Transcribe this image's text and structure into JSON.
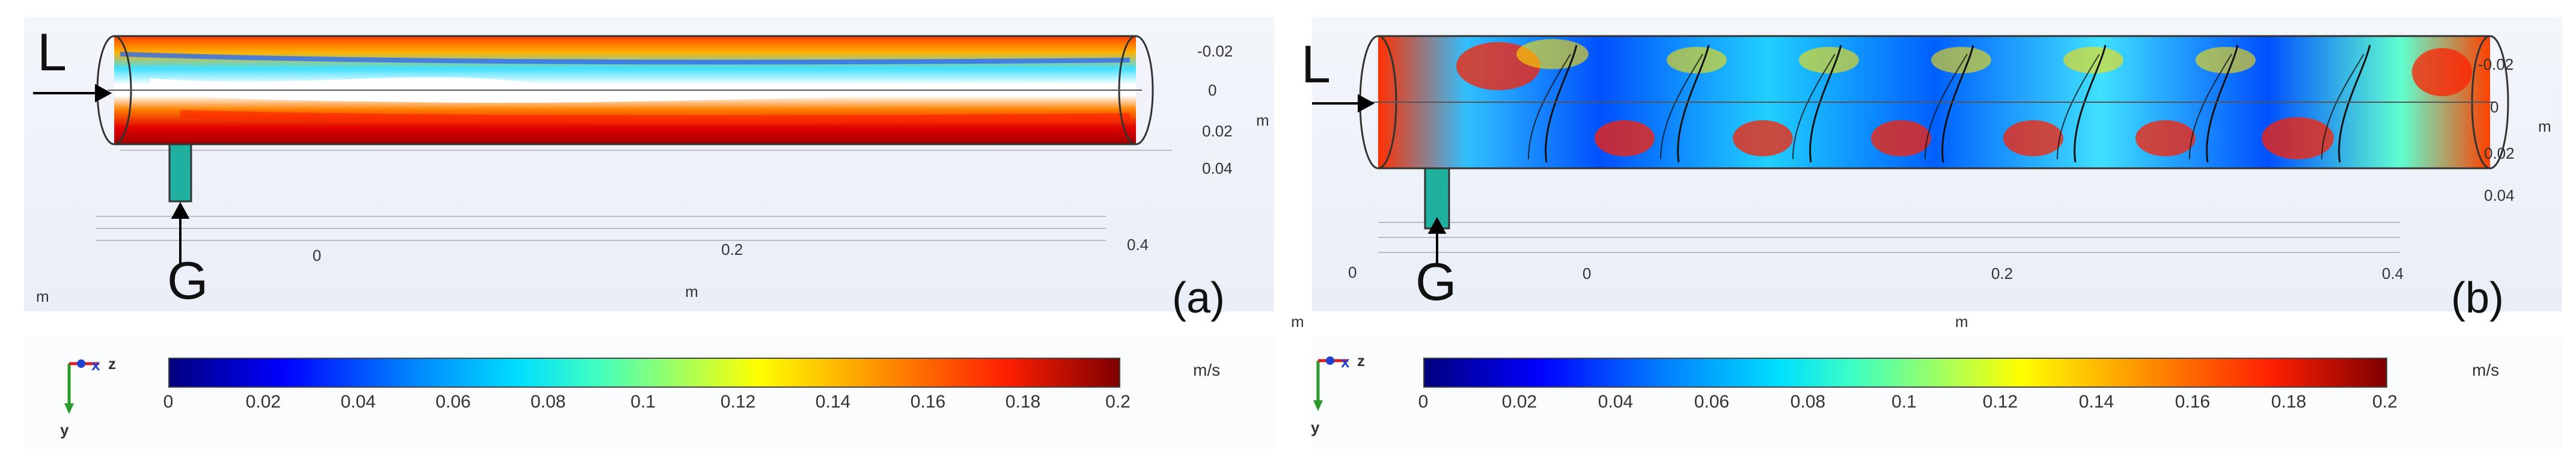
{
  "panels": [
    {
      "id": "a",
      "tag": "(a)",
      "inlet_liquid": "L",
      "inlet_gas": "G",
      "y_ticks": [
        "-0.02",
        "0",
        "0.02",
        "0.04"
      ],
      "y_unit": "m",
      "x_ticks": [
        "0",
        "0.2",
        "0.4"
      ],
      "x_unit": "m",
      "corner_unit": "m",
      "triad": {
        "z": "z",
        "x": "x",
        "y": "y"
      },
      "colorbar": {
        "ticks": [
          "0",
          "0.02",
          "0.04",
          "0.06",
          "0.08",
          "0.1",
          "0.12",
          "0.14",
          "0.16",
          "0.18",
          "0.2"
        ],
        "unit": "m/s"
      }
    },
    {
      "id": "b",
      "tag": "(b)",
      "inlet_liquid": "L",
      "inlet_gas": "G",
      "y_ticks": [
        "-0.02",
        "0",
        "0.02",
        "0.04"
      ],
      "y_unit": "m",
      "x_ticks": [
        "0",
        "0.2",
        "0.4"
      ],
      "x_origin": "0",
      "x_unit": "m",
      "corner_unit": "m",
      "triad": {
        "z": "z",
        "x": "x",
        "y": "y"
      },
      "colorbar": {
        "ticks": [
          "0",
          "0.02",
          "0.04",
          "0.06",
          "0.08",
          "0.1",
          "0.12",
          "0.14",
          "0.16",
          "0.18",
          "0.2"
        ],
        "unit": "m/s"
      }
    }
  ],
  "colors": {
    "low": "#00007f",
    "mid": "#40ffc0",
    "high": "#7f0000"
  }
}
